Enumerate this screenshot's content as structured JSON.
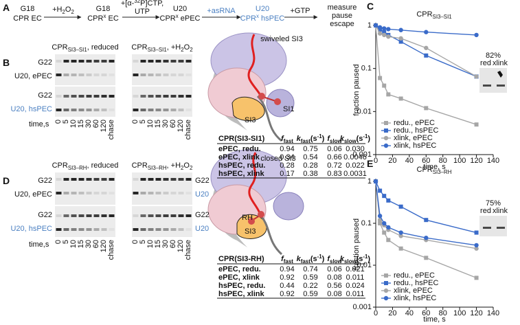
{
  "scheme": {
    "label": "A",
    "s1": [
      "G18",
      "CPR EC"
    ],
    "a1": [
      "+H",
      "2",
      "O",
      "2"
    ],
    "s2": [
      "G18",
      "CPR",
      "x",
      " EC"
    ],
    "a2": [
      "+[α-",
      "32",
      "P]CTP,",
      "UTP"
    ],
    "s3": [
      "U20",
      "CPR",
      "x",
      " ePEC"
    ],
    "a3": "+asRNA",
    "s4": [
      "U20",
      "CPR",
      "x",
      " hsPEC"
    ],
    "a4": "+GTP",
    "s5": [
      "measure",
      "pause",
      "escape"
    ]
  },
  "panel_b": {
    "label": "B",
    "gels": [
      [
        "CPR",
        "SI3–SI1",
        ", reduced"
      ],
      [
        "CPR",
        "SI3–SI1",
        ", +H",
        "2",
        "O",
        "2"
      ]
    ],
    "row_labels": [
      "G22",
      "U20, ePEC",
      "G22",
      "U20, hsPEC"
    ],
    "time_label": "time,s",
    "lanes": [
      "0",
      "5",
      "10",
      "15",
      "30",
      "60",
      "120",
      "chase"
    ],
    "diagram": {
      "title": "swiveled SI3",
      "labels": [
        "SI1",
        "SI3"
      ]
    },
    "table": {
      "header": [
        [
          "CPR(SI3-SI1)"
        ],
        [
          "f",
          "fast"
        ],
        [
          "k",
          "fast",
          "(s",
          "-1",
          ")"
        ],
        [
          "f",
          "slow"
        ],
        [
          "k",
          "slow",
          "(s",
          "-1",
          ")"
        ]
      ],
      "rows": [
        [
          "ePEC, redu.",
          "0.94",
          "0.75",
          "0.06",
          "0.030"
        ],
        [
          "ePEC, xlink",
          "0.34",
          "0.54",
          "0.66",
          "0.0046"
        ],
        [
          "hsPEC, redu.",
          "0.28",
          "0.28",
          "0.72",
          "0.022"
        ],
        [
          "hsPEC, xlink",
          "0.17",
          "0.38",
          "0.83",
          "0.0031"
        ]
      ]
    }
  },
  "panel_d": {
    "label": "D",
    "gels": [
      [
        "CPR",
        "SI3–RH",
        ", reduced"
      ],
      [
        "CPR",
        "SI3–RH",
        ", +H",
        "2",
        "O",
        "2"
      ]
    ],
    "row_labels": [
      "G22",
      "U20, ePEC",
      "G22",
      "U20, hsPEC"
    ],
    "right_labels": [
      "G22",
      "U20",
      "G22",
      "U20"
    ],
    "time_label": "time,s",
    "lanes": [
      "0",
      "5",
      "10",
      "15",
      "30",
      "60",
      "120",
      "chase"
    ],
    "diagram": {
      "title": "closed SI3",
      "labels": [
        "RH",
        "SI3"
      ]
    },
    "table": {
      "header": [
        [
          "CPR(SI3-RH)"
        ],
        [
          "f",
          "fast"
        ],
        [
          "k",
          "fast",
          "(s",
          "-1",
          ")"
        ],
        [
          "f",
          "slow"
        ],
        [
          "k",
          "slow",
          "(s",
          "-1",
          ")"
        ]
      ],
      "rows": [
        [
          "ePEC, redu.",
          "0.94",
          "0.74",
          "0.06",
          "0.021"
        ],
        [
          "ePEC, xlink",
          "0.92",
          "0.59",
          "0.08",
          "0.011"
        ],
        [
          "hsPEC, redu.",
          "0.44",
          "0.22",
          "0.56",
          "0.024"
        ],
        [
          "hsPEC, xlink",
          "0.92",
          "0.59",
          "0.08",
          "0.011"
        ]
      ]
    }
  },
  "chart_data": [
    {
      "type": "line",
      "label": "C",
      "title": [
        "CPR",
        "SI3–SI1"
      ],
      "xlabel": "time, s",
      "ylabel": "fraction paused",
      "x": [
        0,
        5,
        10,
        15,
        30,
        60,
        120
      ],
      "xlim": [
        0,
        140
      ],
      "xticks": [
        0,
        20,
        40,
        60,
        80,
        100,
        120,
        140
      ],
      "ylim": [
        0.001,
        1
      ],
      "yticks": [
        0.001,
        0.01,
        0.1,
        1
      ],
      "log_y": true,
      "legend": "lower left",
      "series": [
        {
          "name": "redu., ePEC",
          "color": "#a6a6a6",
          "marker": "square",
          "values": [
            1,
            0.06,
            0.04,
            0.025,
            0.02,
            0.012,
            0.005
          ]
        },
        {
          "name": "redu., hsPEC",
          "color": "#3a6bc9",
          "marker": "square",
          "values": [
            1,
            0.8,
            0.7,
            0.6,
            0.42,
            0.2,
            0.065
          ]
        },
        {
          "name": "xlink, ePEC",
          "color": "#a6a6a6",
          "marker": "circle",
          "values": [
            1,
            0.65,
            0.6,
            0.55,
            0.5,
            0.3,
            0.065
          ]
        },
        {
          "name": "xlink, hsPEC",
          "color": "#3a6bc9",
          "marker": "circle",
          "values": [
            1,
            0.9,
            0.85,
            0.82,
            0.78,
            0.7,
            0.6
          ]
        }
      ],
      "inset": [
        "82%",
        "red",
        "xlink"
      ]
    },
    {
      "type": "line",
      "label": "E",
      "title": [
        "CPR",
        "SI3–RH"
      ],
      "xlabel": "time, s",
      "ylabel": "fraction paused",
      "x": [
        0,
        5,
        10,
        15,
        30,
        60,
        120
      ],
      "xlim": [
        0,
        140
      ],
      "xticks": [
        0,
        20,
        40,
        60,
        80,
        100,
        120,
        140
      ],
      "ylim": [
        0.001,
        1
      ],
      "yticks": [
        0.001,
        0.01,
        0.1,
        1
      ],
      "log_y": true,
      "legend": "lower left",
      "series": [
        {
          "name": "redu., ePEC",
          "color": "#a6a6a6",
          "marker": "square",
          "values": [
            1,
            0.1,
            0.06,
            0.04,
            0.025,
            0.015,
            0.005
          ]
        },
        {
          "name": "redu., hsPEC",
          "color": "#3a6bc9",
          "marker": "square",
          "values": [
            1,
            0.6,
            0.45,
            0.35,
            0.25,
            0.12,
            0.06
          ]
        },
        {
          "name": "xlink, ePEC",
          "color": "#a6a6a6",
          "marker": "circle",
          "values": [
            1,
            0.12,
            0.09,
            0.07,
            0.05,
            0.04,
            0.025
          ]
        },
        {
          "name": "xlink, hsPEC",
          "color": "#3a6bc9",
          "marker": "circle",
          "values": [
            1,
            0.15,
            0.1,
            0.08,
            0.06,
            0.045,
            0.03
          ]
        }
      ],
      "inset": [
        "75%",
        "red",
        "xlink"
      ]
    }
  ]
}
